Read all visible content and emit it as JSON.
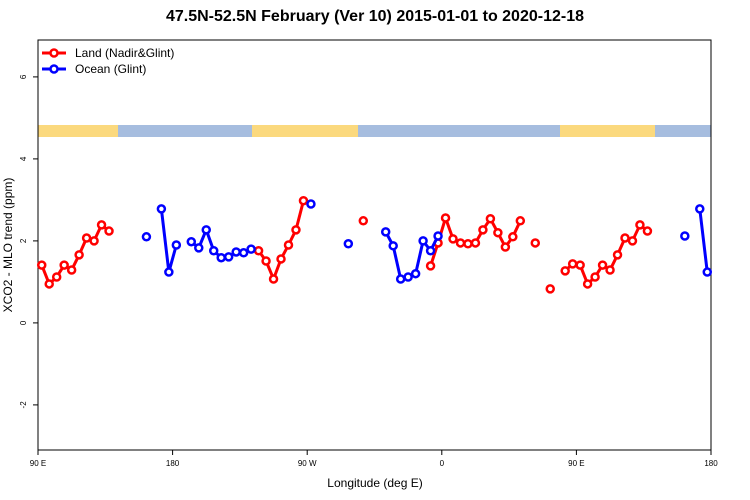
{
  "chart_data": {
    "type": "line",
    "title": "47.5N-52.5N February (Ver 10)   2015-01-01 to 2020-12-18",
    "x_label": "Longitude (deg E)",
    "y_label": "XCO2 - MLO trend (ppm)",
    "xlim": [
      90,
      540
    ],
    "ylim": [
      -3.1,
      6.9
    ],
    "xticks": [
      {
        "value": 90,
        "label": "90 E"
      },
      180,
      {
        "value": 270,
        "label": "90 W"
      },
      {
        "value": 360,
        "label": "0"
      },
      {
        "value": 450,
        "label": "90 E"
      },
      {
        "value": 540,
        "label": "180"
      }
    ],
    "yticks": [
      -2,
      0,
      2,
      4,
      6
    ],
    "legend": "top-left",
    "series": [
      {
        "name": "Land (Nadir&Glint)",
        "color": "#ff0000",
        "x": [
          92.5,
          97.5,
          102.5,
          107.5,
          112.5,
          117.5,
          122.5,
          127.5,
          132.5,
          137.5,
          null,
          237.5,
          242.5,
          247.5,
          252.5,
          257.5,
          262.5,
          267.5,
          null,
          307.5,
          null,
          352.5,
          357.5,
          362.5,
          367.5,
          372.5,
          377.5,
          382.5,
          387.5,
          392.5,
          397.5,
          402.5,
          407.5,
          412.5,
          null,
          422.5,
          null,
          432.5,
          null,
          442.5,
          447.5,
          452.5,
          457.5,
          462.5,
          467.5,
          472.5,
          477.5,
          482.5,
          487.5,
          492.5,
          497.5
        ],
        "values": [
          1.41,
          0.95,
          1.12,
          1.41,
          1.29,
          1.66,
          2.07,
          2.0,
          2.39,
          2.24,
          null,
          1.76,
          1.51,
          1.07,
          1.56,
          1.9,
          2.27,
          2.98,
          null,
          2.49,
          null,
          1.39,
          1.95,
          2.56,
          2.05,
          1.95,
          1.93,
          1.95,
          2.27,
          2.54,
          2.2,
          1.85,
          2.1,
          2.49,
          null,
          1.95,
          null,
          0.83,
          null,
          1.27,
          1.44,
          1.41,
          0.95,
          1.12,
          1.41,
          1.29,
          1.66,
          2.07,
          2.0,
          2.39,
          2.24
        ]
      },
      {
        "name": "Ocean (Glint)",
        "color": "#0000ff",
        "x": [
          162.5,
          null,
          172.5,
          177.5,
          182.5,
          null,
          192.5,
          197.5,
          202.5,
          207.5,
          212.5,
          217.5,
          222.5,
          227.5,
          232.5,
          null,
          272.5,
          null,
          297.5,
          null,
          322.5,
          327.5,
          332.5,
          337.5,
          342.5,
          347.5,
          352.5,
          357.5,
          null,
          522.5,
          null,
          532.5,
          537.5
        ],
        "values": [
          2.1,
          null,
          2.78,
          1.24,
          1.9,
          null,
          1.98,
          1.83,
          2.27,
          1.76,
          1.59,
          1.61,
          1.73,
          1.71,
          1.8,
          null,
          2.9,
          null,
          1.93,
          null,
          2.22,
          1.88,
          1.07,
          1.12,
          1.2,
          2.0,
          1.76,
          2.12,
          null,
          2.12,
          null,
          2.78,
          1.24
        ]
      }
    ]
  }
}
